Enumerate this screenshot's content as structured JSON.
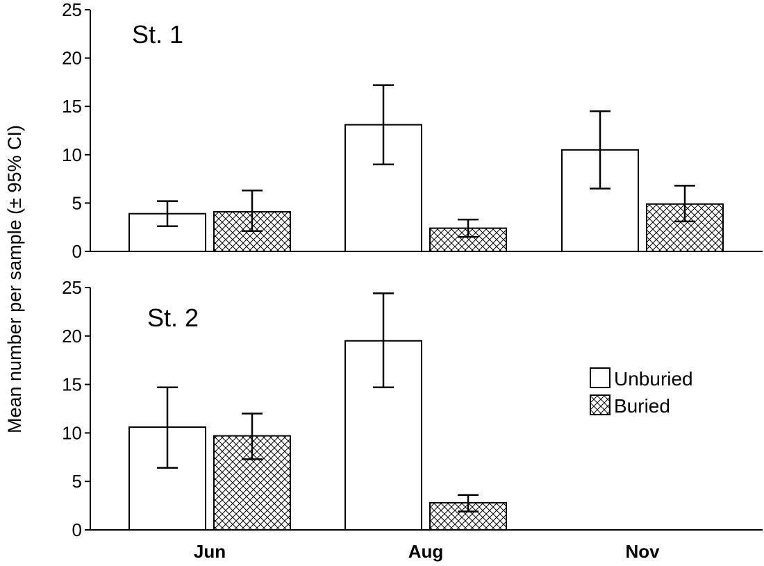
{
  "chart_data": {
    "type": "bar",
    "ylabel": "Mean number per sample (± 95% CI)",
    "categories": [
      "Jun",
      "Aug",
      "Nov"
    ],
    "legend": {
      "placement": "right",
      "entries": [
        "Unburied",
        "Buried"
      ]
    },
    "panels": [
      {
        "label": "St. 1",
        "ylim": [
          0,
          25
        ],
        "yticks": [
          0,
          5,
          10,
          15,
          20,
          25
        ],
        "series": [
          {
            "name": "Unburied",
            "values": [
              3.9,
              13.1,
              10.5
            ],
            "ci_low": [
              2.6,
              9.0,
              6.5
            ],
            "ci_high": [
              5.2,
              17.2,
              14.5
            ]
          },
          {
            "name": "Buried",
            "values": [
              4.1,
              2.4,
              4.9
            ],
            "ci_low": [
              2.1,
              1.5,
              3.1
            ],
            "ci_high": [
              6.3,
              3.3,
              6.8
            ]
          }
        ]
      },
      {
        "label": "St. 2",
        "ylim": [
          0,
          25
        ],
        "yticks": [
          0,
          5,
          10,
          15,
          20,
          25
        ],
        "series": [
          {
            "name": "Unburied",
            "values": [
              10.6,
              19.5,
              null
            ],
            "ci_low": [
              6.4,
              14.7,
              null
            ],
            "ci_high": [
              14.7,
              24.4,
              null
            ]
          },
          {
            "name": "Buried",
            "values": [
              9.7,
              2.8,
              null
            ],
            "ci_low": [
              7.3,
              1.9,
              null
            ],
            "ci_high": [
              12.0,
              3.6,
              null
            ]
          }
        ]
      }
    ],
    "colors": {
      "unburied": "#ffffff",
      "buried_pattern": "crosshatch",
      "stroke": "#000000"
    }
  }
}
